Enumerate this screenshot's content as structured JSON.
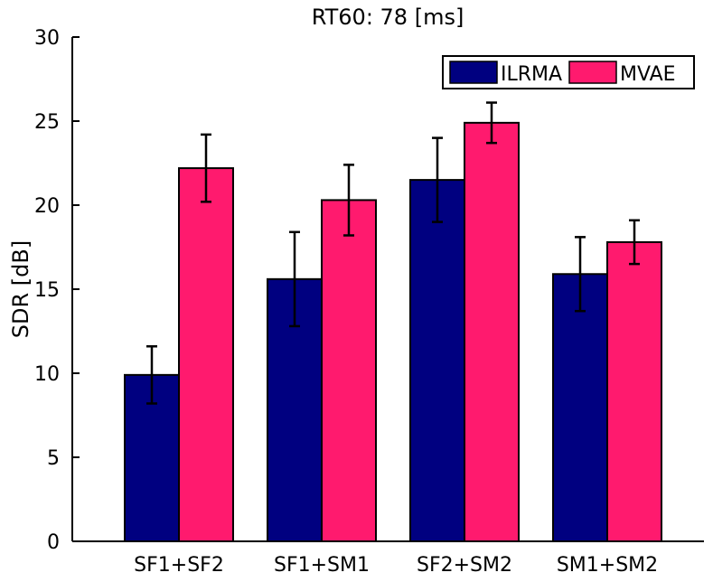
{
  "chart_data": {
    "type": "bar",
    "title": "RT60: 78 [ms]",
    "xlabel": "",
    "ylabel": "SDR [dB]",
    "ylim": [
      0,
      30
    ],
    "yticks": [
      0,
      5,
      10,
      15,
      20,
      25,
      30
    ],
    "categories": [
      "SF1+SF2",
      "SF1+SM1",
      "SF2+SM2",
      "SM1+SM2"
    ],
    "series": [
      {
        "name": "ILRMA",
        "color": "#000080",
        "values": [
          9.9,
          15.6,
          21.5,
          15.9
        ],
        "error_low": [
          8.2,
          12.8,
          19.0,
          13.7
        ],
        "error_high": [
          11.6,
          18.4,
          24.0,
          18.1
        ]
      },
      {
        "name": "MVAE",
        "color": "#FF1A6E",
        "values": [
          22.2,
          20.3,
          24.9,
          17.8
        ],
        "error_low": [
          20.2,
          18.2,
          23.7,
          16.5
        ],
        "error_high": [
          24.2,
          22.4,
          26.1,
          19.1
        ]
      }
    ],
    "legend": "top-right",
    "grid": false
  }
}
